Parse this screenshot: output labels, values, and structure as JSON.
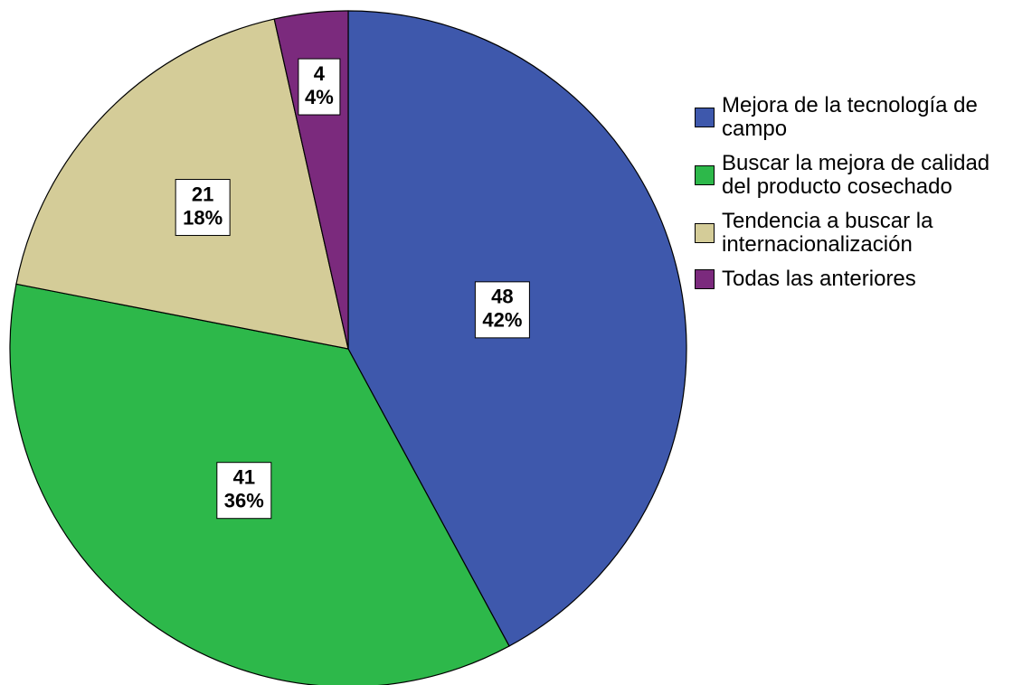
{
  "chart_data": {
    "type": "pie",
    "categories": [
      "Mejora de la tecnología de campo",
      "Buscar la mejora de calidad del producto cosechado",
      "Tendencia a buscar la internacionalización",
      "Todas las anteriores"
    ],
    "values": [
      48,
      41,
      21,
      4
    ],
    "percent_labels": [
      "42%",
      "36%",
      "18%",
      "4%"
    ],
    "colors": [
      "#3e58ac",
      "#2db84a",
      "#d4cc98",
      "#7b2a7d"
    ],
    "legend": "right"
  }
}
